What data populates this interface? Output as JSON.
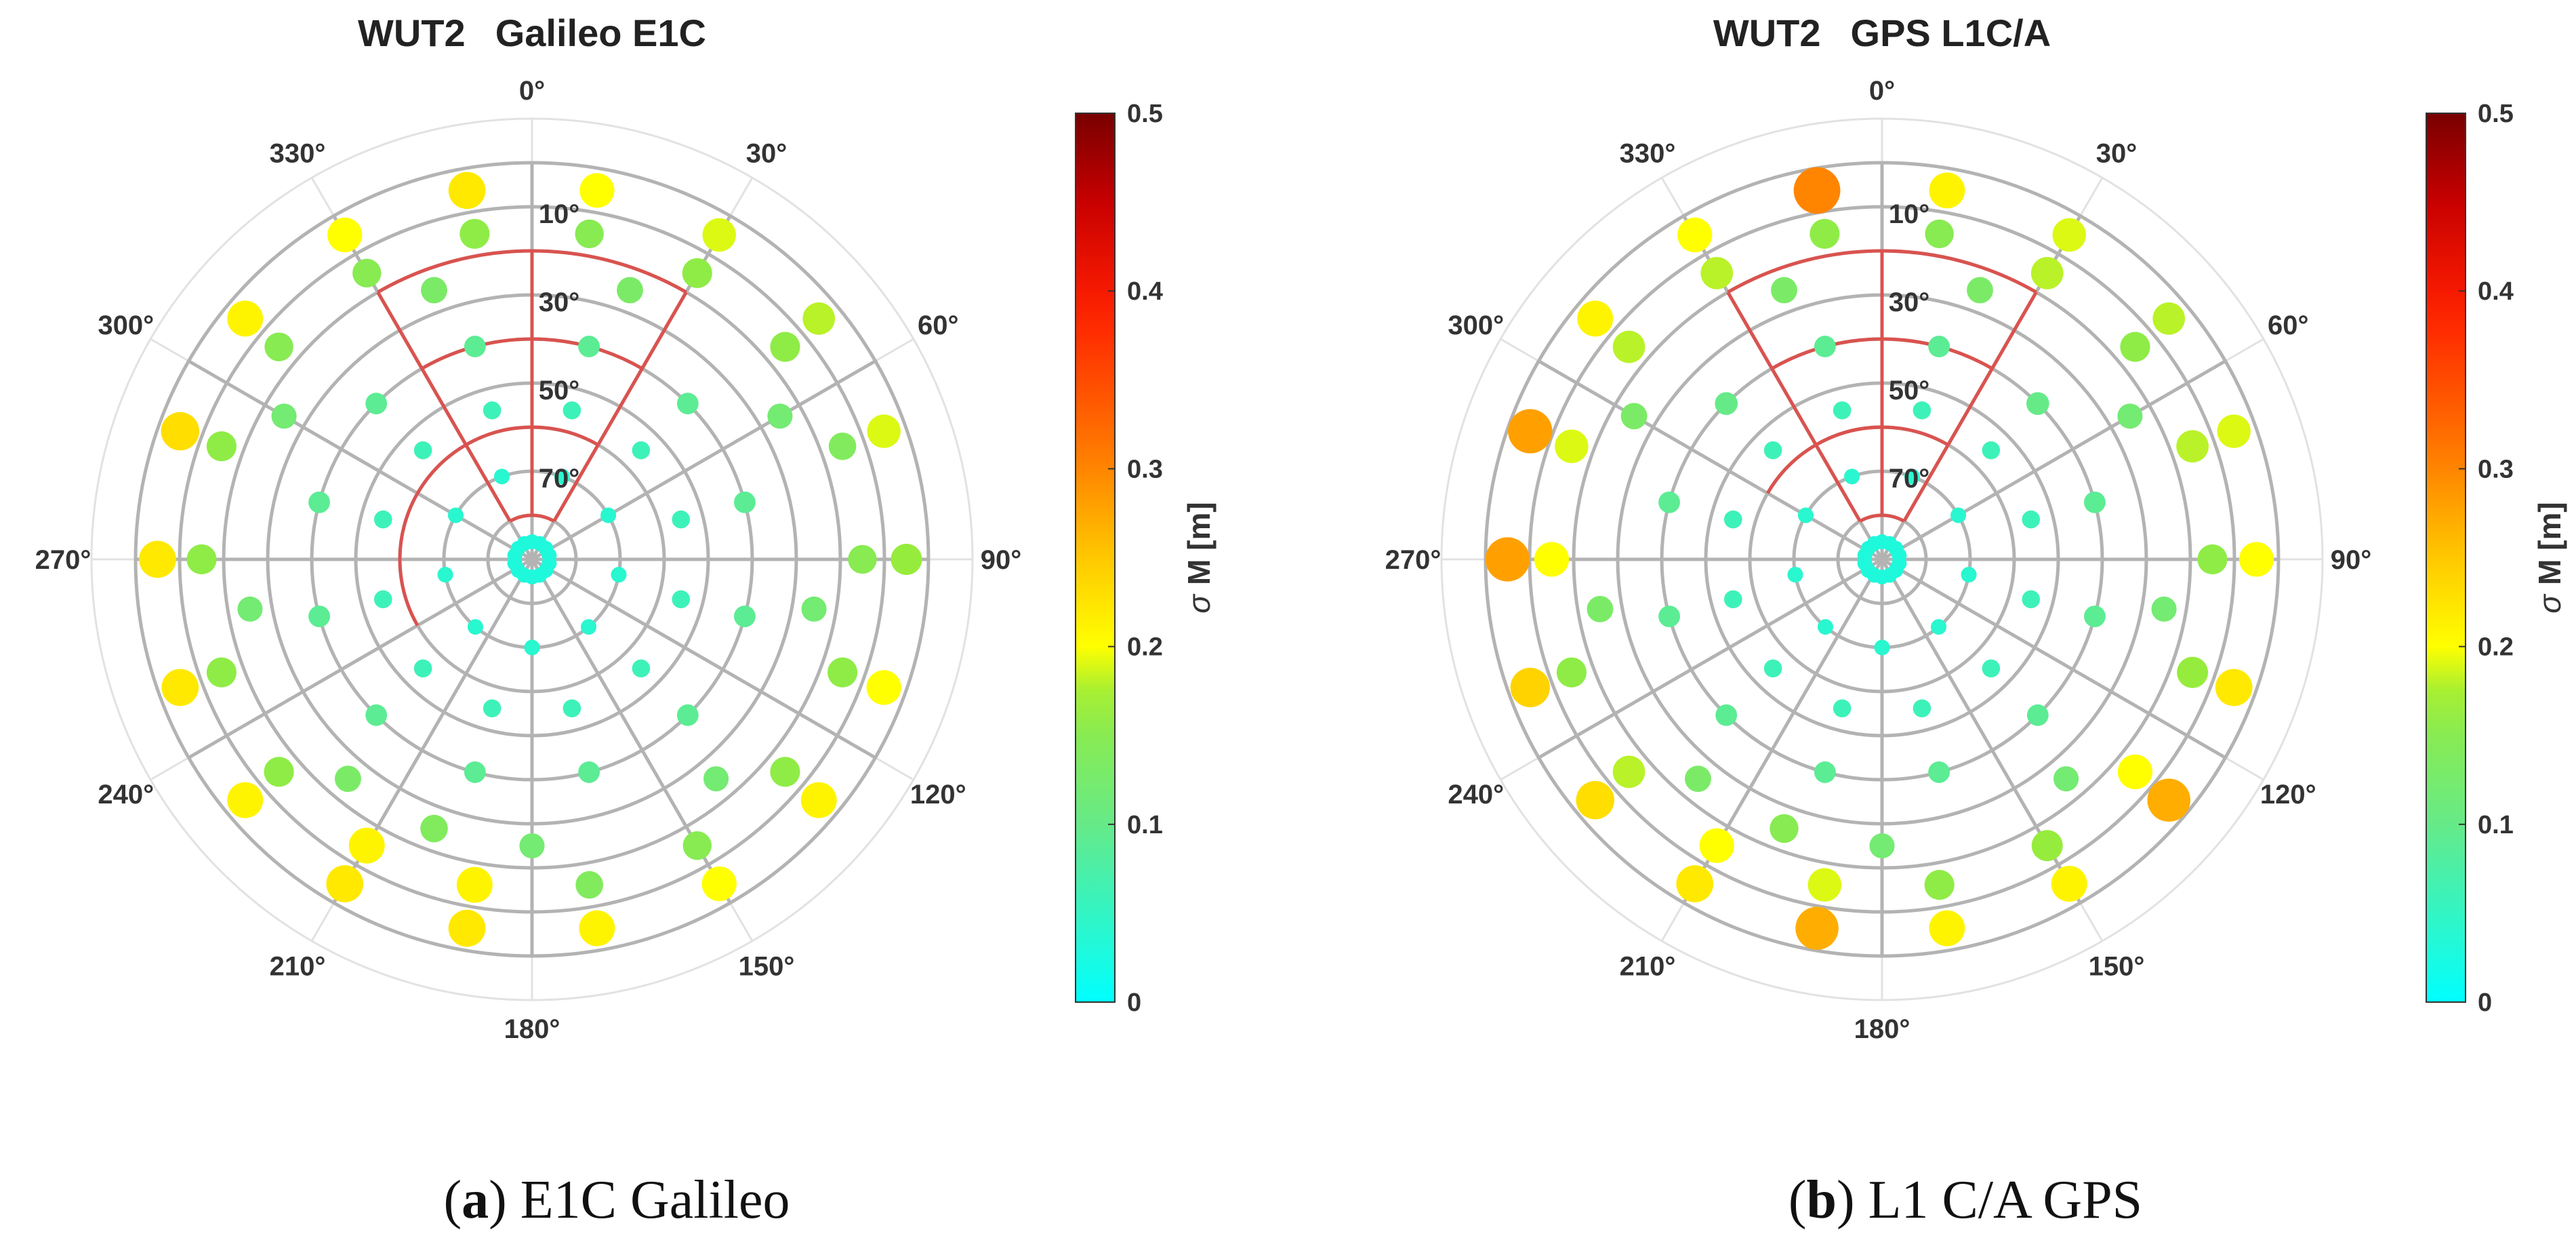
{
  "chart_data": [
    {
      "type": "polar-scatter",
      "title_station": "WUT2",
      "title_signal": "Galileo E1C",
      "caption_letter": "a",
      "caption_text": "E1C Galileo",
      "azimuth_labels": [
        "0°",
        "30°",
        "60°",
        "90°",
        "120°",
        "150°",
        "180°",
        "210°",
        "240°",
        "270°",
        "300°",
        "330°"
      ],
      "elevation_labels": [
        "10°",
        "30°",
        "50°",
        "70°"
      ],
      "colorbar": {
        "min": 0,
        "max": 0.5,
        "ticks": [
          "0",
          "0.1",
          "0.2",
          "0.3",
          "0.4",
          "0.5"
        ],
        "label_sym": "σ",
        "label_text": "M [m]"
      },
      "highlight_sector": {
        "az_start": 330,
        "az_end": 30,
        "elev_min": 10,
        "elev_max": 90,
        "extra_arc_70": [
          240,
          330
        ]
      },
      "points": [
        {
          "az": 10,
          "el": 5,
          "v": 0.2
        },
        {
          "az": 350,
          "el": 5,
          "v": 0.22
        },
        {
          "az": 30,
          "el": 5,
          "v": 0.19
        },
        {
          "az": 50,
          "el": 5,
          "v": 0.18
        },
        {
          "az": 70,
          "el": 5,
          "v": 0.19
        },
        {
          "az": 90,
          "el": 5,
          "v": 0.17
        },
        {
          "az": 110,
          "el": 5,
          "v": 0.2
        },
        {
          "az": 130,
          "el": 5,
          "v": 0.21
        },
        {
          "az": 150,
          "el": 5,
          "v": 0.2
        },
        {
          "az": 170,
          "el": 5,
          "v": 0.21
        },
        {
          "az": 190,
          "el": 5,
          "v": 0.22
        },
        {
          "az": 210,
          "el": 5,
          "v": 0.22
        },
        {
          "az": 230,
          "el": 5,
          "v": 0.21
        },
        {
          "az": 250,
          "el": 5,
          "v": 0.22
        },
        {
          "az": 270,
          "el": 5,
          "v": 0.22
        },
        {
          "az": 290,
          "el": 5,
          "v": 0.23
        },
        {
          "az": 310,
          "el": 5,
          "v": 0.21
        },
        {
          "az": 330,
          "el": 5,
          "v": 0.2
        },
        {
          "az": 10,
          "el": 15,
          "v": 0.15
        },
        {
          "az": 350,
          "el": 15,
          "v": 0.16
        },
        {
          "az": 30,
          "el": 15,
          "v": 0.16
        },
        {
          "az": 50,
          "el": 15,
          "v": 0.16
        },
        {
          "az": 70,
          "el": 15,
          "v": 0.14
        },
        {
          "az": 90,
          "el": 15,
          "v": 0.15
        },
        {
          "az": 110,
          "el": 15,
          "v": 0.16
        },
        {
          "az": 130,
          "el": 15,
          "v": 0.16
        },
        {
          "az": 150,
          "el": 15,
          "v": 0.15
        },
        {
          "az": 170,
          "el": 15,
          "v": 0.14
        },
        {
          "az": 190,
          "el": 15,
          "v": 0.21
        },
        {
          "az": 210,
          "el": 15,
          "v": 0.21
        },
        {
          "az": 230,
          "el": 15,
          "v": 0.16
        },
        {
          "az": 250,
          "el": 15,
          "v": 0.16
        },
        {
          "az": 270,
          "el": 15,
          "v": 0.16
        },
        {
          "az": 290,
          "el": 15,
          "v": 0.16
        },
        {
          "az": 310,
          "el": 15,
          "v": 0.15
        },
        {
          "az": 330,
          "el": 15,
          "v": 0.15
        },
        {
          "az": 20,
          "el": 25,
          "v": 0.13
        },
        {
          "az": 60,
          "el": 25,
          "v": 0.12
        },
        {
          "az": 100,
          "el": 25,
          "v": 0.12
        },
        {
          "az": 140,
          "el": 25,
          "v": 0.12
        },
        {
          "az": 180,
          "el": 25,
          "v": 0.12
        },
        {
          "az": 220,
          "el": 25,
          "v": 0.13
        },
        {
          "az": 260,
          "el": 25,
          "v": 0.12
        },
        {
          "az": 300,
          "el": 25,
          "v": 0.12
        },
        {
          "az": 340,
          "el": 25,
          "v": 0.13
        },
        {
          "az": 200,
          "el": 25,
          "v": 0.14
        },
        {
          "az": 15,
          "el": 40,
          "v": 0.09
        },
        {
          "az": 45,
          "el": 40,
          "v": 0.09
        },
        {
          "az": 75,
          "el": 40,
          "v": 0.09
        },
        {
          "az": 105,
          "el": 40,
          "v": 0.09
        },
        {
          "az": 135,
          "el": 40,
          "v": 0.09
        },
        {
          "az": 165,
          "el": 40,
          "v": 0.09
        },
        {
          "az": 195,
          "el": 40,
          "v": 0.09
        },
        {
          "az": 225,
          "el": 40,
          "v": 0.09
        },
        {
          "az": 255,
          "el": 40,
          "v": 0.09
        },
        {
          "az": 285,
          "el": 40,
          "v": 0.09
        },
        {
          "az": 315,
          "el": 40,
          "v": 0.09
        },
        {
          "az": 345,
          "el": 40,
          "v": 0.09
        },
        {
          "az": 15,
          "el": 55,
          "v": 0.06
        },
        {
          "az": 45,
          "el": 55,
          "v": 0.06
        },
        {
          "az": 75,
          "el": 55,
          "v": 0.06
        },
        {
          "az": 105,
          "el": 55,
          "v": 0.06
        },
        {
          "az": 135,
          "el": 55,
          "v": 0.06
        },
        {
          "az": 165,
          "el": 55,
          "v": 0.06
        },
        {
          "az": 195,
          "el": 55,
          "v": 0.06
        },
        {
          "az": 225,
          "el": 55,
          "v": 0.06
        },
        {
          "az": 255,
          "el": 55,
          "v": 0.06
        },
        {
          "az": 285,
          "el": 55,
          "v": 0.06
        },
        {
          "az": 315,
          "el": 55,
          "v": 0.06
        },
        {
          "az": 345,
          "el": 55,
          "v": 0.06
        },
        {
          "az": 20,
          "el": 70,
          "v": 0.04
        },
        {
          "az": 60,
          "el": 70,
          "v": 0.04
        },
        {
          "az": 100,
          "el": 70,
          "v": 0.04
        },
        {
          "az": 140,
          "el": 70,
          "v": 0.04
        },
        {
          "az": 180,
          "el": 70,
          "v": 0.04
        },
        {
          "az": 220,
          "el": 70,
          "v": 0.04
        },
        {
          "az": 260,
          "el": 70,
          "v": 0.04
        },
        {
          "az": 300,
          "el": 70,
          "v": 0.04
        },
        {
          "az": 340,
          "el": 70,
          "v": 0.04
        }
      ]
    },
    {
      "type": "polar-scatter",
      "title_station": "WUT2",
      "title_signal": "GPS L1C/A",
      "caption_letter": "b",
      "caption_text": "L1 C/A GPS",
      "azimuth_labels": [
        "0°",
        "30°",
        "60°",
        "90°",
        "120°",
        "150°",
        "180°",
        "210°",
        "240°",
        "270°",
        "300°",
        "330°"
      ],
      "elevation_labels": [
        "10°",
        "30°",
        "50°",
        "70°"
      ],
      "colorbar": {
        "min": 0,
        "max": 0.5,
        "ticks": [
          "0",
          "0.1",
          "0.2",
          "0.3",
          "0.4",
          "0.5"
        ],
        "label_sym": "σ",
        "label_text": "M [m]"
      },
      "highlight_sector": {
        "az_start": 330,
        "az_end": 30,
        "elev_min": 10,
        "elev_max": 90,
        "extra_arc_70": [
          300,
          360
        ]
      },
      "points": [
        {
          "az": 10,
          "el": 5,
          "v": 0.21
        },
        {
          "az": 350,
          "el": 5,
          "v": 0.3
        },
        {
          "az": 30,
          "el": 5,
          "v": 0.19
        },
        {
          "az": 50,
          "el": 5,
          "v": 0.18
        },
        {
          "az": 70,
          "el": 5,
          "v": 0.19
        },
        {
          "az": 90,
          "el": 5,
          "v": 0.2
        },
        {
          "az": 110,
          "el": 5,
          "v": 0.22
        },
        {
          "az": 130,
          "el": 5,
          "v": 0.27
        },
        {
          "az": 150,
          "el": 5,
          "v": 0.21
        },
        {
          "az": 170,
          "el": 5,
          "v": 0.21
        },
        {
          "az": 190,
          "el": 5,
          "v": 0.27
        },
        {
          "az": 210,
          "el": 5,
          "v": 0.22
        },
        {
          "az": 230,
          "el": 5,
          "v": 0.23
        },
        {
          "az": 250,
          "el": 5,
          "v": 0.24
        },
        {
          "az": 270,
          "el": 5,
          "v": 0.28
        },
        {
          "az": 290,
          "el": 5,
          "v": 0.28
        },
        {
          "az": 310,
          "el": 5,
          "v": 0.21
        },
        {
          "az": 330,
          "el": 5,
          "v": 0.2
        },
        {
          "az": 10,
          "el": 15,
          "v": 0.15
        },
        {
          "az": 350,
          "el": 15,
          "v": 0.16
        },
        {
          "az": 30,
          "el": 15,
          "v": 0.18
        },
        {
          "az": 50,
          "el": 15,
          "v": 0.16
        },
        {
          "az": 70,
          "el": 15,
          "v": 0.18
        },
        {
          "az": 90,
          "el": 15,
          "v": 0.16
        },
        {
          "az": 110,
          "el": 15,
          "v": 0.17
        },
        {
          "az": 130,
          "el": 15,
          "v": 0.2
        },
        {
          "az": 150,
          "el": 15,
          "v": 0.17
        },
        {
          "az": 170,
          "el": 15,
          "v": 0.16
        },
        {
          "az": 190,
          "el": 15,
          "v": 0.19
        },
        {
          "az": 210,
          "el": 15,
          "v": 0.2
        },
        {
          "az": 230,
          "el": 15,
          "v": 0.18
        },
        {
          "az": 250,
          "el": 15,
          "v": 0.16
        },
        {
          "az": 270,
          "el": 15,
          "v": 0.2
        },
        {
          "az": 290,
          "el": 15,
          "v": 0.19
        },
        {
          "az": 310,
          "el": 15,
          "v": 0.18
        },
        {
          "az": 330,
          "el": 15,
          "v": 0.18
        },
        {
          "az": 20,
          "el": 25,
          "v": 0.13
        },
        {
          "az": 60,
          "el": 25,
          "v": 0.12
        },
        {
          "az": 100,
          "el": 25,
          "v": 0.12
        },
        {
          "az": 140,
          "el": 25,
          "v": 0.12
        },
        {
          "az": 180,
          "el": 25,
          "v": 0.12
        },
        {
          "az": 220,
          "el": 25,
          "v": 0.13
        },
        {
          "az": 260,
          "el": 25,
          "v": 0.13
        },
        {
          "az": 300,
          "el": 25,
          "v": 0.13
        },
        {
          "az": 340,
          "el": 25,
          "v": 0.13
        },
        {
          "az": 200,
          "el": 25,
          "v": 0.15
        },
        {
          "az": 15,
          "el": 40,
          "v": 0.09
        },
        {
          "az": 45,
          "el": 40,
          "v": 0.1
        },
        {
          "az": 75,
          "el": 40,
          "v": 0.09
        },
        {
          "az": 105,
          "el": 40,
          "v": 0.09
        },
        {
          "az": 135,
          "el": 40,
          "v": 0.09
        },
        {
          "az": 165,
          "el": 40,
          "v": 0.09
        },
        {
          "az": 195,
          "el": 40,
          "v": 0.09
        },
        {
          "az": 225,
          "el": 40,
          "v": 0.09
        },
        {
          "az": 255,
          "el": 40,
          "v": 0.09
        },
        {
          "az": 285,
          "el": 40,
          "v": 0.09
        },
        {
          "az": 315,
          "el": 40,
          "v": 0.1
        },
        {
          "az": 345,
          "el": 40,
          "v": 0.09
        },
        {
          "az": 15,
          "el": 55,
          "v": 0.06
        },
        {
          "az": 45,
          "el": 55,
          "v": 0.06
        },
        {
          "az": 75,
          "el": 55,
          "v": 0.06
        },
        {
          "az": 105,
          "el": 55,
          "v": 0.06
        },
        {
          "az": 135,
          "el": 55,
          "v": 0.06
        },
        {
          "az": 165,
          "el": 55,
          "v": 0.06
        },
        {
          "az": 195,
          "el": 55,
          "v": 0.06
        },
        {
          "az": 225,
          "el": 55,
          "v": 0.06
        },
        {
          "az": 255,
          "el": 55,
          "v": 0.06
        },
        {
          "az": 285,
          "el": 55,
          "v": 0.06
        },
        {
          "az": 315,
          "el": 55,
          "v": 0.06
        },
        {
          "az": 345,
          "el": 55,
          "v": 0.06
        },
        {
          "az": 20,
          "el": 70,
          "v": 0.04
        },
        {
          "az": 60,
          "el": 70,
          "v": 0.04
        },
        {
          "az": 100,
          "el": 70,
          "v": 0.04
        },
        {
          "az": 140,
          "el": 70,
          "v": 0.04
        },
        {
          "az": 180,
          "el": 70,
          "v": 0.04
        },
        {
          "az": 220,
          "el": 70,
          "v": 0.04
        },
        {
          "az": 260,
          "el": 70,
          "v": 0.04
        },
        {
          "az": 300,
          "el": 70,
          "v": 0.04
        },
        {
          "az": 340,
          "el": 70,
          "v": 0.04
        }
      ]
    }
  ]
}
